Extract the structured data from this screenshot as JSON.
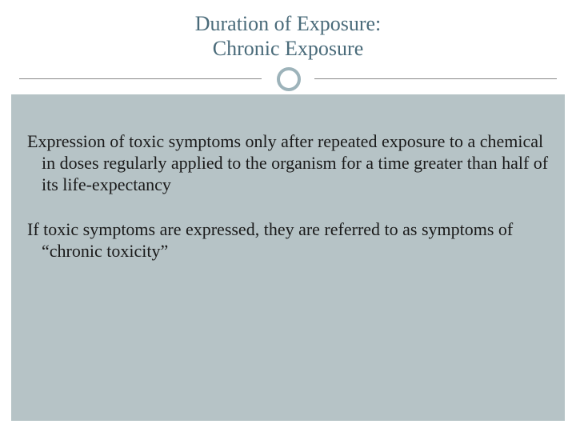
{
  "title": {
    "line1": "Duration of Exposure:",
    "line2": "Chronic Exposure",
    "color": "#4a6b7a",
    "fontsize": 26
  },
  "divider": {
    "line_color": "#888888",
    "circle_border_color": "#9db3ba",
    "circle_bg": "#ffffff"
  },
  "body": {
    "background_color": "#b6c3c6",
    "text_color": "#1a1a1a",
    "fontsize": 22,
    "paragraphs": [
      "Expression of toxic symptoms only after repeated exposure to a chemical in doses regularly applied to the organism for a time greater than half of its life-expectancy",
      "If toxic symptoms are expressed, they are referred to as symptoms of “chronic toxicity”"
    ]
  }
}
